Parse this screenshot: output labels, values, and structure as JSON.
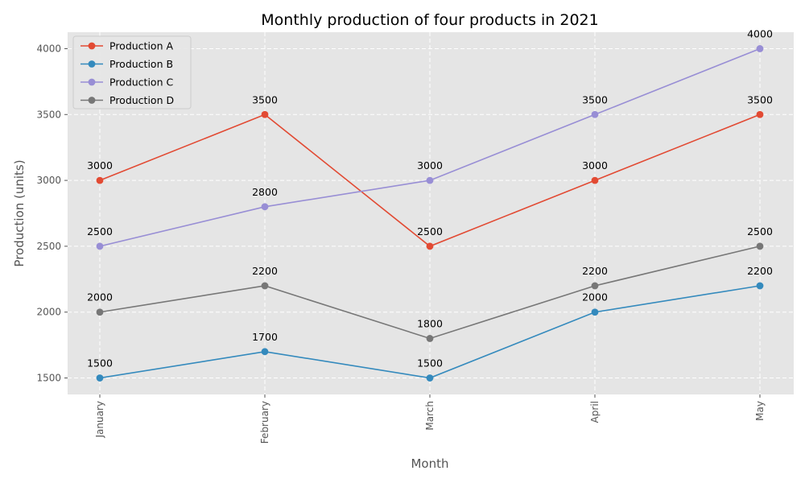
{
  "chart_data": {
    "type": "line",
    "title": "Monthly production of four products in 2021",
    "xlabel": "Month",
    "ylabel": "Production (units)",
    "categories": [
      "January",
      "February",
      "March",
      "April",
      "May"
    ],
    "ylim": [
      1375,
      4125
    ],
    "yticks": [
      1500,
      2000,
      2500,
      3000,
      3500,
      4000
    ],
    "grid": true,
    "legend_position": "top-left",
    "series": [
      {
        "name": "Production A",
        "color": "#E24A33",
        "values": [
          3000,
          3500,
          2500,
          3000,
          3500
        ]
      },
      {
        "name": "Production B",
        "color": "#348ABD",
        "values": [
          1500,
          1700,
          1500,
          2000,
          2200
        ]
      },
      {
        "name": "Production C",
        "color": "#988ED5",
        "values": [
          2500,
          2800,
          3000,
          3500,
          4000
        ]
      },
      {
        "name": "Production D",
        "color": "#777777",
        "values": [
          2000,
          2200,
          1800,
          2200,
          2500
        ]
      }
    ]
  }
}
